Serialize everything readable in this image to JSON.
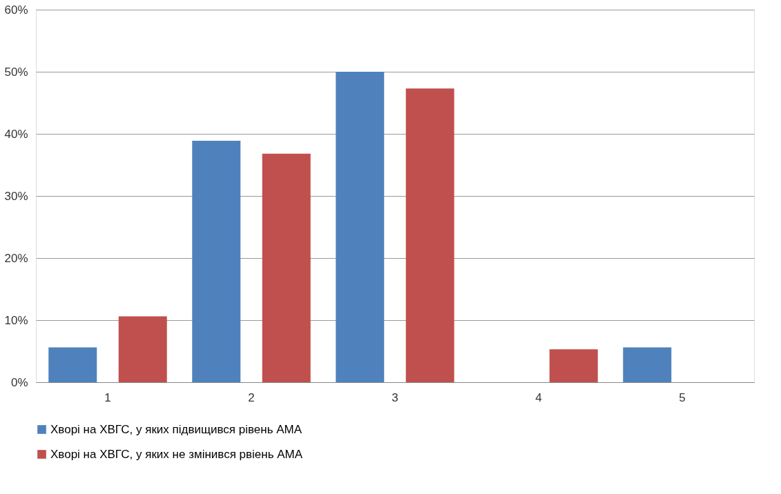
{
  "chart_data": {
    "type": "bar",
    "categories": [
      "1",
      "2",
      "3",
      "4",
      "5"
    ],
    "series": [
      {
        "name": "Хворі на ХВГС, у яких підвищився рівень АМА",
        "color": "#4f81bd",
        "values": [
          5.6,
          38.9,
          50.0,
          0,
          5.6
        ]
      },
      {
        "name": "Хворі на ХВГС, у яких не змінився рвіень АМА",
        "color": "#c0504d",
        "values": [
          10.6,
          36.8,
          47.3,
          5.3,
          0
        ]
      }
    ],
    "ylim": [
      0,
      60
    ],
    "yticks": [
      {
        "value": 0,
        "label": "0%"
      },
      {
        "value": 10,
        "label": "10%"
      },
      {
        "value": 20,
        "label": "20%"
      },
      {
        "value": 30,
        "label": "30%"
      },
      {
        "value": 40,
        "label": "40%"
      },
      {
        "value": 50,
        "label": "50%"
      },
      {
        "value": 60,
        "label": "60%"
      }
    ],
    "grid": "y",
    "legend": "bottom"
  }
}
